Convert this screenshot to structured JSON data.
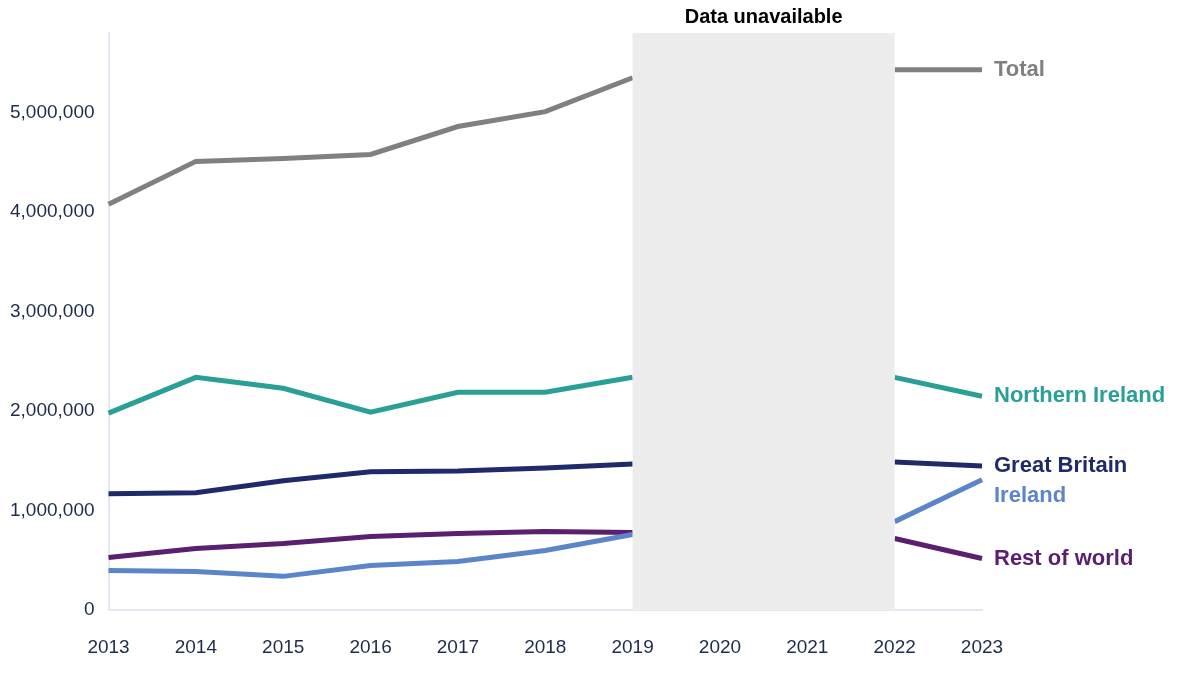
{
  "chart_data": {
    "type": "line",
    "categories": [
      "2013",
      "2014",
      "2015",
      "2016",
      "2017",
      "2018",
      "2019",
      "2020",
      "2021",
      "2022",
      "2023"
    ],
    "series": [
      {
        "name": "Total",
        "color": "#808080",
        "values": [
          4080000,
          4510000,
          4540000,
          4580000,
          4860000,
          5010000,
          5350000,
          null,
          null,
          5430000,
          5430000
        ]
      },
      {
        "name": "Northern Ireland",
        "color": "#28a095",
        "values": [
          1980000,
          2340000,
          2230000,
          1990000,
          2190000,
          2190000,
          2340000,
          null,
          null,
          2340000,
          2150000
        ]
      },
      {
        "name": "Great Britain",
        "color": "#1f2a6b",
        "values": [
          1170000,
          1180000,
          1300000,
          1390000,
          1400000,
          1430000,
          1470000,
          null,
          null,
          1490000,
          1450000
        ]
      },
      {
        "name": "Ireland",
        "color": "#5b85c8",
        "values": [
          400000,
          390000,
          340000,
          450000,
          490000,
          600000,
          760000,
          null,
          null,
          890000,
          1310000
        ]
      },
      {
        "name": "Rest of world",
        "color": "#5a1f6e",
        "values": [
          530000,
          620000,
          670000,
          740000,
          770000,
          790000,
          780000,
          null,
          null,
          720000,
          520000
        ]
      }
    ],
    "ylim": [
      0,
      5800000
    ],
    "yticks": [
      0,
      {
        "value": 1000000,
        "label": "1,000,000"
      },
      {
        "value": 2000000,
        "label": "2,000,000"
      },
      {
        "value": 3000000,
        "label": "3,000,000"
      },
      {
        "value": 4000000,
        "label": "4,000,000"
      },
      {
        "value": 5000000,
        "label": "5,000,000"
      }
    ],
    "grid": false,
    "shaded_region": {
      "label": "Data unavailable",
      "start": "2019",
      "end": "2022"
    }
  }
}
